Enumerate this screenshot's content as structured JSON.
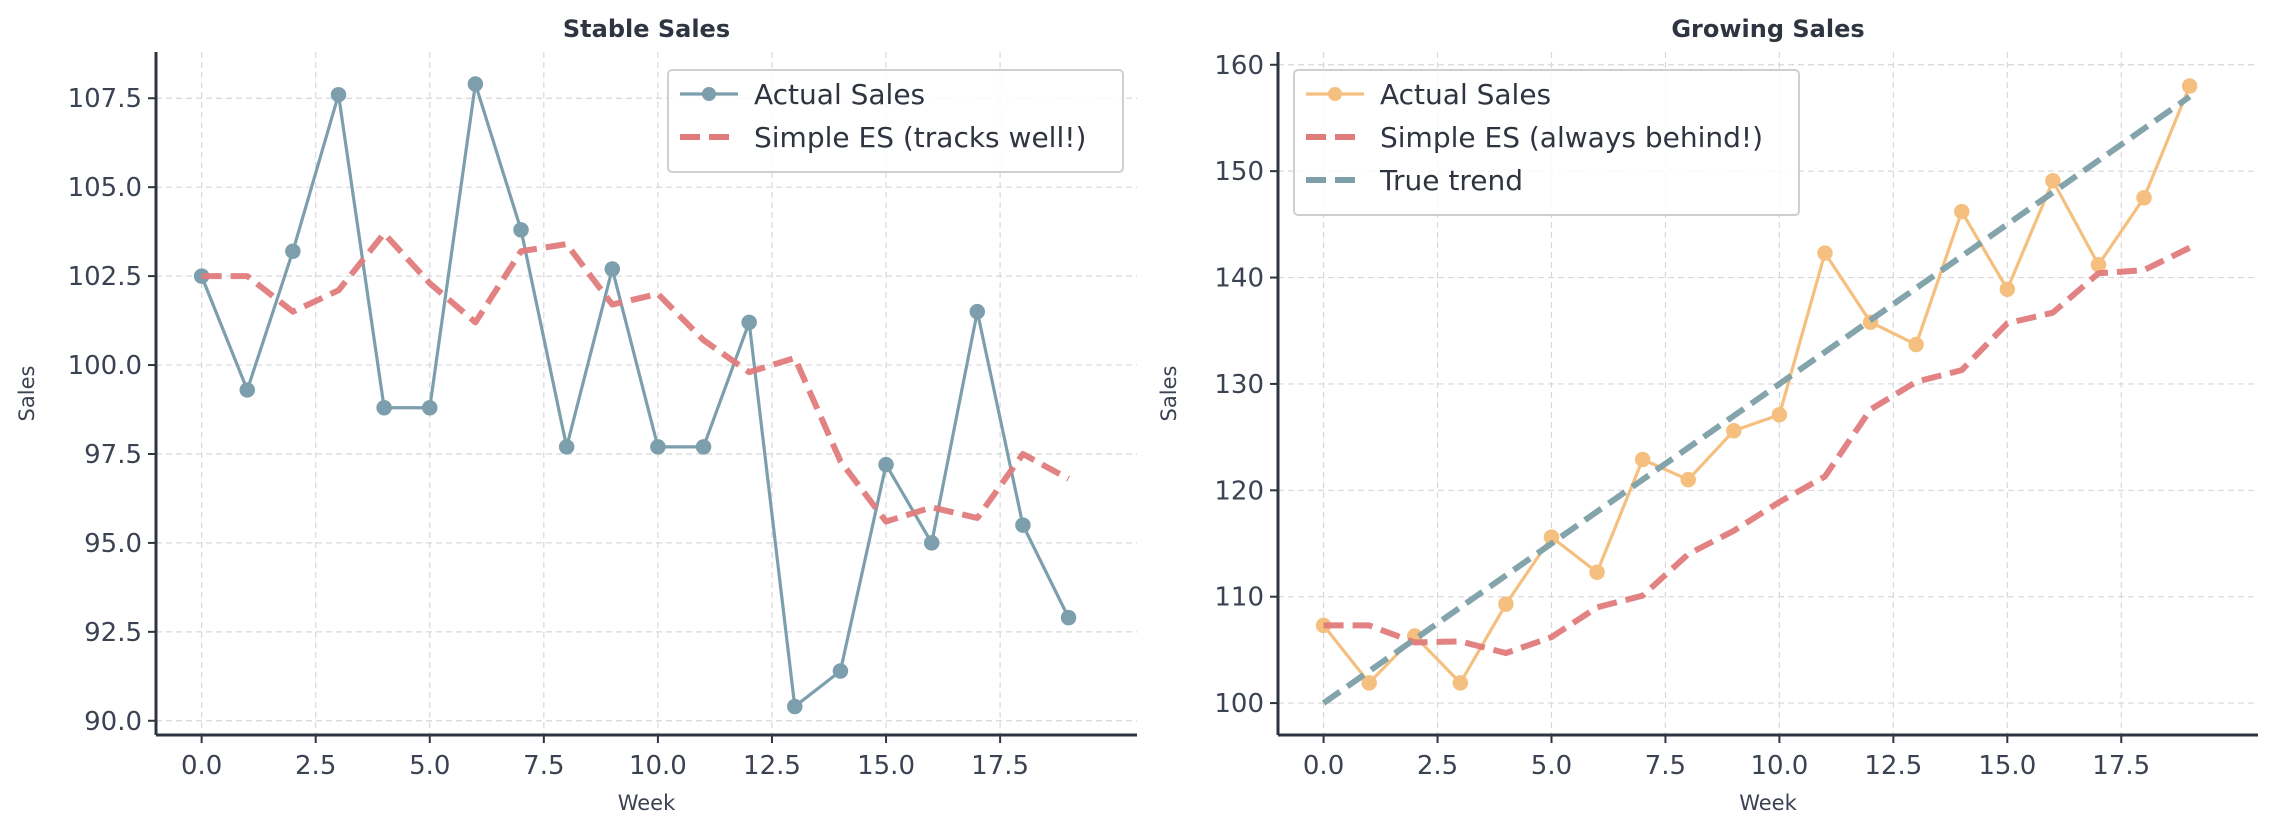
{
  "chart_data": [
    {
      "type": "line",
      "title": "Stable Sales",
      "xlabel": "Week",
      "ylabel": "Sales",
      "xlim": [
        -1,
        20.5
      ],
      "ylim": [
        89.6,
        108.8
      ],
      "xticks": [
        0,
        2.5,
        5,
        7.5,
        10,
        12.5,
        15,
        17.5
      ],
      "xtick_labels": [
        "0.0",
        "2.5",
        "5.0",
        "7.5",
        "10.0",
        "12.5",
        "15.0",
        "17.5"
      ],
      "yticks": [
        90,
        92.5,
        95,
        97.5,
        100,
        102.5,
        105,
        107.5
      ],
      "ytick_labels": [
        "90.0",
        "92.5",
        "95.0",
        "97.5",
        "100.0",
        "102.5",
        "105.0",
        "107.5"
      ],
      "grid": true,
      "legend_position": "top-right",
      "series": [
        {
          "name": "Actual Sales",
          "style": "solid-markers",
          "color": "#7d9fad",
          "x": [
            0,
            1,
            2,
            3,
            4,
            5,
            6,
            7,
            8,
            9,
            10,
            11,
            12,
            13,
            14,
            15,
            16,
            17,
            18,
            19
          ],
          "values": [
            102.5,
            99.3,
            103.2,
            107.6,
            98.8,
            98.8,
            107.9,
            103.8,
            97.7,
            102.7,
            97.7,
            97.7,
            101.2,
            90.4,
            91.4,
            97.2,
            95.0,
            101.5,
            95.5,
            92.9
          ]
        },
        {
          "name": "Simple ES (tracks well!)",
          "style": "dashed",
          "color": "#e07b7b",
          "x": [
            0,
            1,
            2,
            3,
            4,
            5,
            6,
            7,
            8,
            9,
            10,
            11,
            12,
            13,
            14,
            15,
            16,
            17,
            18,
            19
          ],
          "values": [
            102.5,
            102.5,
            101.5,
            102.1,
            103.7,
            102.3,
            101.2,
            103.2,
            103.4,
            101.7,
            102.0,
            100.7,
            99.8,
            100.2,
            97.3,
            95.6,
            96.0,
            95.7,
            97.5,
            96.8
          ]
        }
      ]
    },
    {
      "type": "line",
      "title": "Growing Sales",
      "xlabel": "Week",
      "ylabel": "Sales",
      "xlim": [
        -1,
        20.5
      ],
      "ylim": [
        97.0,
        161.2
      ],
      "xticks": [
        0,
        2.5,
        5,
        7.5,
        10,
        12.5,
        15,
        17.5
      ],
      "xtick_labels": [
        "0.0",
        "2.5",
        "5.0",
        "7.5",
        "10.0",
        "12.5",
        "15.0",
        "17.5"
      ],
      "yticks": [
        100,
        110,
        120,
        130,
        140,
        150,
        160
      ],
      "ytick_labels": [
        "100",
        "110",
        "120",
        "130",
        "140",
        "150",
        "160"
      ],
      "grid": true,
      "legend_position": "top-left",
      "series": [
        {
          "name": "Actual Sales",
          "style": "solid-markers",
          "color": "#f5c07f",
          "x": [
            0,
            1,
            2,
            3,
            4,
            5,
            6,
            7,
            8,
            9,
            10,
            11,
            12,
            13,
            14,
            15,
            16,
            17,
            18,
            19
          ],
          "values": [
            107.3,
            101.9,
            106.3,
            101.9,
            109.3,
            115.6,
            112.3,
            122.9,
            121.0,
            125.6,
            127.1,
            142.3,
            135.8,
            133.7,
            146.2,
            138.9,
            149.1,
            141.2,
            147.5,
            158.0
          ]
        },
        {
          "name": "Simple ES (always behind!)",
          "style": "dashed",
          "color": "#e07b7b",
          "x": [
            0,
            1,
            2,
            3,
            4,
            5,
            6,
            7,
            8,
            9,
            10,
            11,
            12,
            13,
            14,
            15,
            16,
            17,
            18,
            19
          ],
          "values": [
            107.3,
            107.3,
            105.7,
            105.8,
            104.7,
            106.2,
            109.0,
            110.1,
            114.0,
            116.2,
            118.9,
            121.3,
            127.6,
            130.2,
            131.3,
            135.7,
            136.7,
            140.4,
            140.7,
            142.8
          ]
        },
        {
          "name": "True trend",
          "style": "dashed",
          "color": "#7d9fa8",
          "x": [
            0,
            19
          ],
          "values": [
            100,
            157
          ]
        }
      ]
    }
  ]
}
